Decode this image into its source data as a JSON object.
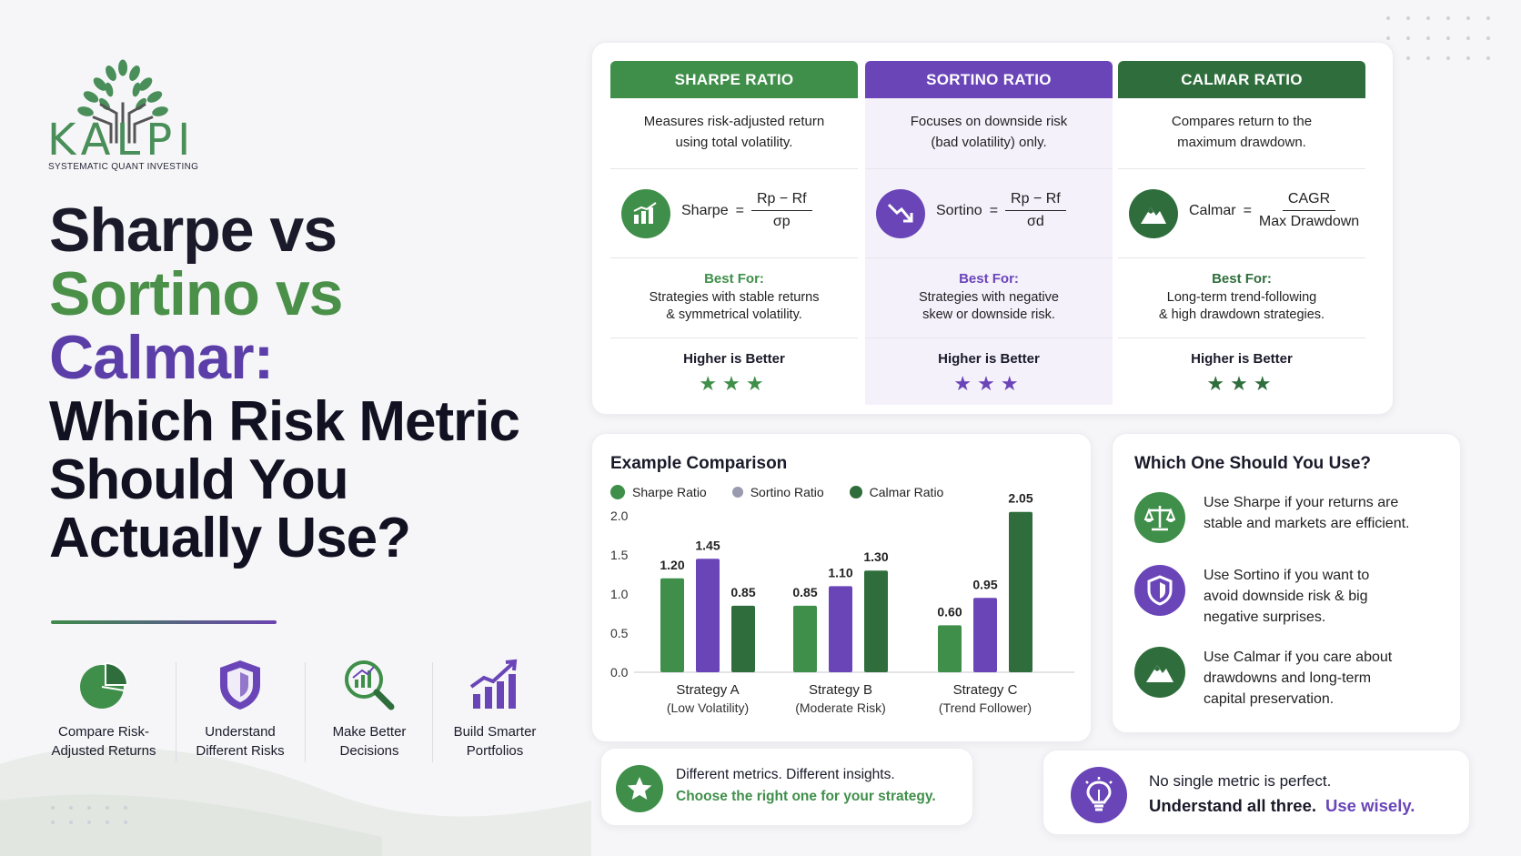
{
  "colors": {
    "green": "#3f8f4a",
    "dark_green": "#2f6e3c",
    "purple": "#6a45b8",
    "light_purple": "#9a9aae"
  },
  "logo": {
    "name": "KALPI",
    "tagline": "SYSTEMATIC QUANT INVESTING"
  },
  "title": {
    "line1": "Sharpe vs",
    "line2": "Sortino vs",
    "line3": "Calmar:",
    "line4": "Which Risk Metric",
    "line5": "Should You",
    "line6": "Actually Use?"
  },
  "features": [
    {
      "icon": "pie-chart-icon",
      "label_1": "Compare Risk-",
      "label_2": "Adjusted Returns"
    },
    {
      "icon": "shield-icon",
      "label_1": "Understand",
      "label_2": "Different Risks"
    },
    {
      "icon": "magnifier-chart-icon",
      "label_1": "Make Better",
      "label_2": "Decisions"
    },
    {
      "icon": "growth-bars-icon",
      "label_1": "Build Smarter",
      "label_2": "Portfolios"
    }
  ],
  "metrics": [
    {
      "header": "SHARPE RATIO",
      "desc_1": "Measures risk-adjusted return",
      "desc_2": "using total volatility.",
      "icon": "bar-chart-icon",
      "formula_name": "Sharpe",
      "eq": "=",
      "numerator": "Rp − Rf",
      "denominator": "σp",
      "best_for_label": "Best For:",
      "best_1": "Strategies with stable returns",
      "best_2": "& symmetrical volatility.",
      "higher": "Higher is Better",
      "stars": "★★★"
    },
    {
      "header": "SORTINO RATIO",
      "desc_1": "Focuses on downside risk",
      "desc_2": "(bad volatility) only.",
      "icon": "trend-down-icon",
      "formula_name": "Sortino",
      "eq": "=",
      "numerator": "Rp − Rf",
      "denominator": "σd",
      "best_for_label": "Best For:",
      "best_1": "Strategies with negative",
      "best_2": "skew or downside risk.",
      "higher": "Higher is Better",
      "stars": "★★★"
    },
    {
      "header": "CALMAR RATIO",
      "desc_1": "Compares return to the",
      "desc_2": "maximum drawdown.",
      "icon": "mountain-icon",
      "formula_name": "Calmar",
      "eq": "=",
      "numerator": "CAGR",
      "denominator": "Max Drawdown",
      "best_for_label": "Best For:",
      "best_1": "Long-term trend-following",
      "best_2": "& high drawdown strategies.",
      "higher": "Higher is Better",
      "stars": "★★★"
    }
  ],
  "example": {
    "title": "Example Comparison"
  },
  "chart_data": {
    "type": "bar",
    "categories": [
      "Strategy A",
      "Strategy B",
      "Strategy C"
    ],
    "category_sublabels": [
      "(Low Volatility)",
      "(Moderate Risk)",
      "(Trend Follower)"
    ],
    "series": [
      {
        "name": "Sharpe Ratio",
        "color": "#3f8f4a",
        "values": [
          1.2,
          0.85,
          0.6
        ]
      },
      {
        "name": "Sortino Ratio",
        "color": "#6a45b8",
        "legend_color": "#9a9aae",
        "values": [
          1.45,
          1.1,
          0.95
        ]
      },
      {
        "name": "Calmar Ratio",
        "color": "#2f6e3c",
        "values": [
          0.85,
          1.3,
          2.05
        ]
      }
    ],
    "value_labels": [
      [
        "1.20",
        "1.45",
        "0.85"
      ],
      [
        "0.85",
        "1.10",
        "1.30"
      ],
      [
        "0.60",
        "0.95",
        "2.05"
      ]
    ],
    "yticks": [
      "0.0",
      "0.5",
      "1.0",
      "1.5",
      "2.0"
    ],
    "ylim": [
      0,
      2.1
    ],
    "grid": false,
    "legend_position": "top-left"
  },
  "which": {
    "title": "Which One Should You Use?",
    "items": [
      {
        "icon": "scale-icon",
        "line_1": "Use Sharpe if your returns are",
        "line_2": "stable and markets are efficient.",
        "line_3": ""
      },
      {
        "icon": "shield-icon",
        "line_1": "Use Sortino if you want to",
        "line_2": "avoid downside risk & big",
        "line_3": "negative surprises."
      },
      {
        "icon": "mountain-icon",
        "line_1": "Use Calmar if you care about",
        "line_2": "drawdowns and long-term",
        "line_3": "capital preservation."
      }
    ]
  },
  "banner_left": {
    "icon": "star-badge-icon",
    "line_1": "Different metrics. Different insights.",
    "line_2": "Choose the right one for your strategy."
  },
  "banner_right": {
    "icon": "lightbulb-icon",
    "line_1": "No single metric is perfect.",
    "line_2": "Understand all three.",
    "line_3": "Use wisely."
  }
}
